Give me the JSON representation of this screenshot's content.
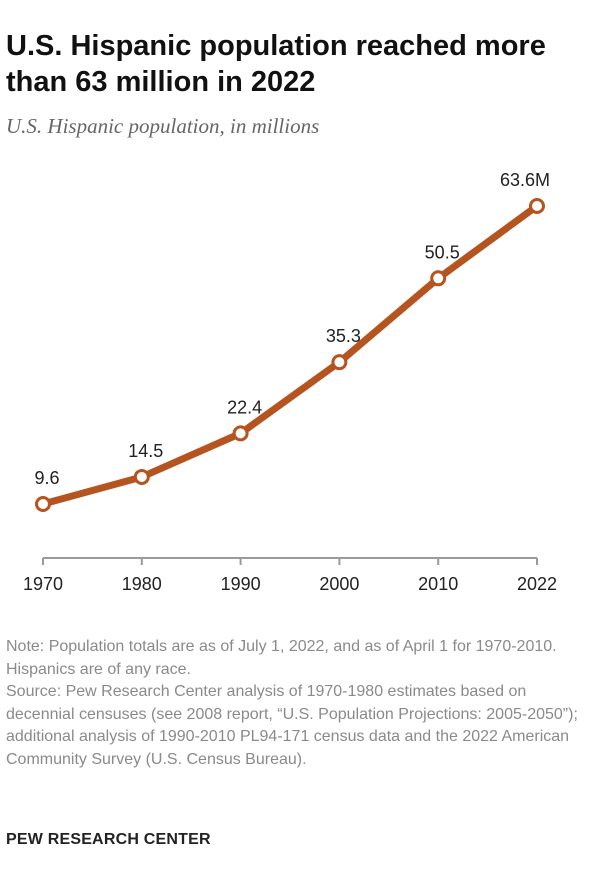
{
  "header": {
    "title": "U.S. Hispanic population reached more than 63 million in 2022",
    "subtitle": "U.S. Hispanic population, in millions"
  },
  "chart_data": {
    "type": "line",
    "x": [
      1970,
      1980,
      1990,
      2000,
      2010,
      2022
    ],
    "x_tick_labels": [
      "1970",
      "1980",
      "1990",
      "2000",
      "2010",
      "2022"
    ],
    "values": [
      9.6,
      14.5,
      22.4,
      35.3,
      50.5,
      63.6
    ],
    "data_labels": [
      "9.6",
      "14.5",
      "22.4",
      "35.3",
      "50.5",
      "63.6M"
    ],
    "ylim": [
      0,
      70
    ],
    "grid": false,
    "line_color": "#b5541f",
    "marker_fill": "#ffffff"
  },
  "footer": {
    "note": "Note: Population totals are as of July 1, 2022, and as of April 1 for 1970-2010. Hispanics are of any race.",
    "source": "Source: Pew Research Center analysis of 1970-1980 estimates based on decennial censuses (see 2008 report, “U.S. Population Projections: 2005-2050”); additional analysis of 1990-2010 PL94-171 census data and the 2022 American Community Survey (U.S. Census Bureau).",
    "brand": "PEW RESEARCH CENTER"
  }
}
